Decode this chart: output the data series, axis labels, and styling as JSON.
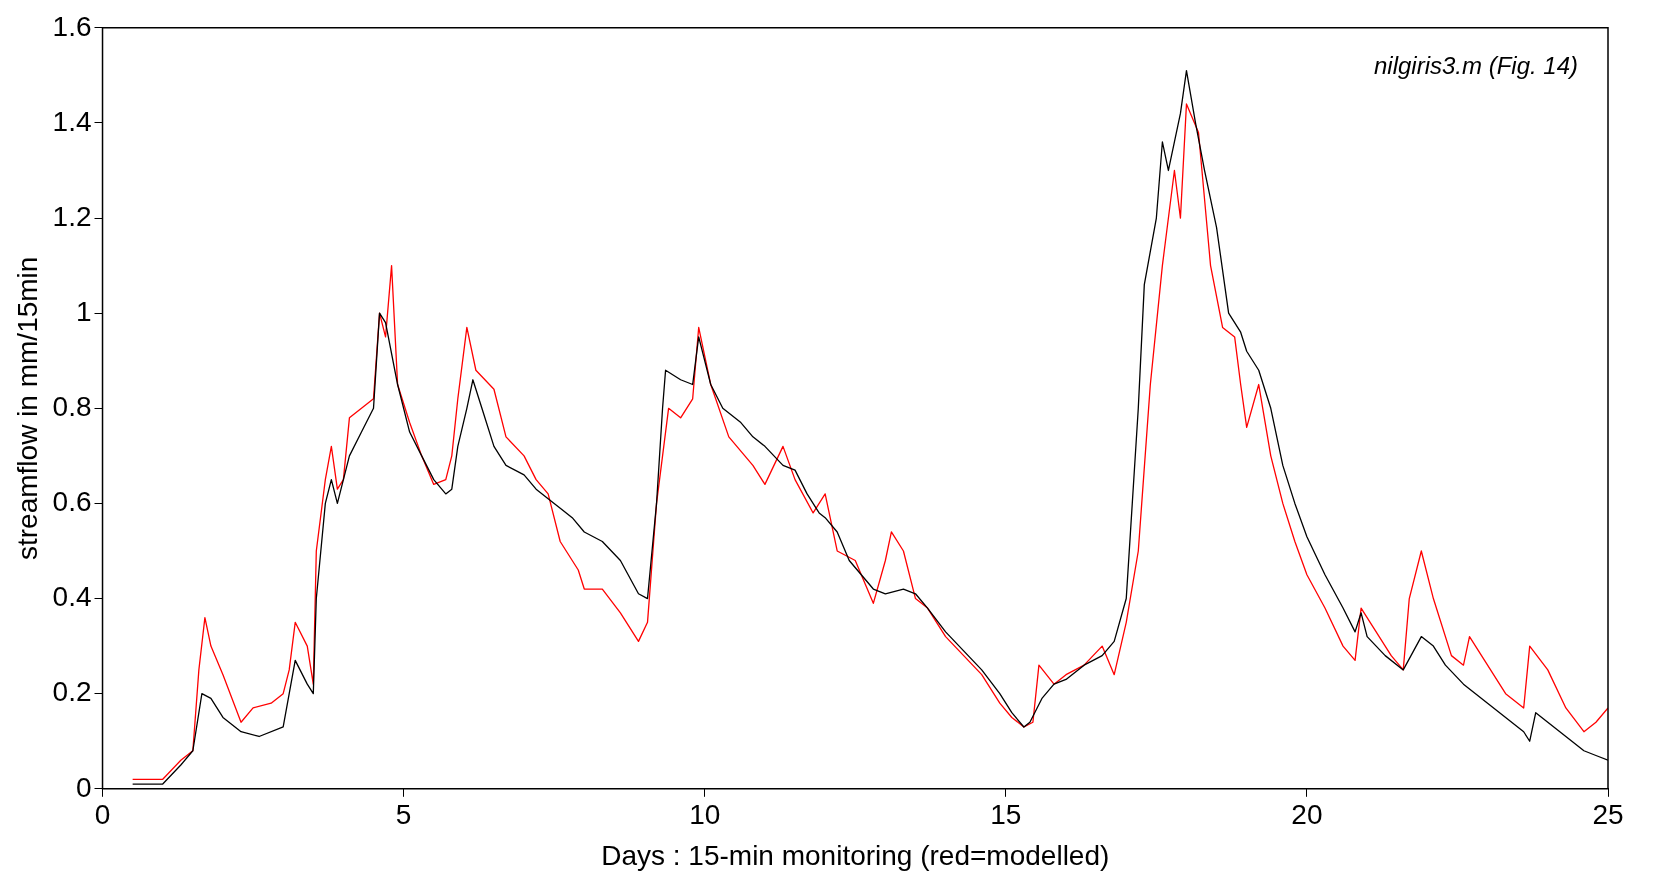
{
  "chart_data": {
    "type": "line",
    "xlabel": "Days : 15-min monitoring (red=modelled)",
    "ylabel": "streamflow in mm/15min",
    "annotations": [
      "nilgiris3.m (Fig. 14)"
    ],
    "xlim": [
      0,
      25
    ],
    "xticks": [
      0,
      5,
      10,
      15,
      20,
      25
    ],
    "ylim": [
      0,
      1.6
    ],
    "yticks": [
      0,
      0.2,
      0.4,
      0.6,
      0.8,
      1,
      1.2,
      1.4,
      1.6
    ],
    "grid": false,
    "legend": false,
    "marker": "none",
    "line_style": "solid",
    "series": [
      {
        "color": "#000000",
        "x": [
          0.5,
          1.0,
          1.3,
          1.5,
          1.65,
          1.8,
          2.0,
          2.3,
          2.6,
          3.0,
          3.1,
          3.2,
          3.4,
          3.5,
          3.55,
          3.7,
          3.8,
          3.9,
          4.1,
          4.3,
          4.5,
          4.6,
          4.7,
          4.9,
          5.1,
          5.3,
          5.5,
          5.7,
          5.8,
          5.9,
          6.05,
          6.15,
          6.3,
          6.5,
          6.7,
          7.0,
          7.2,
          7.5,
          7.8,
          8.0,
          8.3,
          8.6,
          8.9,
          9.05,
          9.2,
          9.3,
          9.35,
          9.6,
          9.8,
          9.9,
          10.1,
          10.3,
          10.6,
          10.8,
          11.0,
          11.3,
          11.5,
          11.7,
          11.9,
          12.0,
          12.2,
          12.4,
          12.6,
          12.8,
          13.0,
          13.3,
          13.5,
          13.7,
          14.0,
          14.3,
          14.6,
          14.9,
          15.1,
          15.3,
          15.4,
          15.6,
          15.8,
          16.0,
          16.3,
          16.6,
          16.8,
          17.0,
          17.1,
          17.2,
          17.3,
          17.5,
          17.6,
          17.7,
          17.8,
          17.9,
          18.0,
          18.15,
          18.3,
          18.5,
          18.7,
          18.9,
          19.0,
          19.2,
          19.4,
          19.6,
          19.8,
          20.0,
          20.3,
          20.6,
          20.8,
          20.9,
          21.0,
          21.3,
          21.6,
          21.9,
          22.1,
          22.3,
          22.6,
          22.8,
          23.0,
          23.3,
          23.6,
          23.7,
          23.8,
          24.0,
          24.3,
          24.6,
          24.8,
          25.0
        ],
        "values": [
          0.01,
          0.01,
          0.05,
          0.08,
          0.2,
          0.19,
          0.15,
          0.12,
          0.11,
          0.13,
          0.2,
          0.27,
          0.22,
          0.2,
          0.4,
          0.6,
          0.65,
          0.6,
          0.7,
          0.75,
          0.8,
          1.0,
          0.98,
          0.85,
          0.75,
          0.7,
          0.65,
          0.62,
          0.63,
          0.72,
          0.8,
          0.86,
          0.8,
          0.72,
          0.68,
          0.66,
          0.63,
          0.6,
          0.57,
          0.54,
          0.52,
          0.48,
          0.41,
          0.4,
          0.6,
          0.8,
          0.88,
          0.86,
          0.85,
          0.95,
          0.85,
          0.8,
          0.77,
          0.74,
          0.72,
          0.68,
          0.67,
          0.62,
          0.58,
          0.57,
          0.54,
          0.48,
          0.45,
          0.42,
          0.41,
          0.42,
          0.41,
          0.38,
          0.33,
          0.29,
          0.25,
          0.2,
          0.16,
          0.13,
          0.14,
          0.19,
          0.22,
          0.23,
          0.26,
          0.28,
          0.31,
          0.4,
          0.6,
          0.8,
          1.06,
          1.2,
          1.36,
          1.3,
          1.36,
          1.42,
          1.51,
          1.4,
          1.3,
          1.18,
          1.0,
          0.96,
          0.92,
          0.88,
          0.8,
          0.68,
          0.6,
          0.53,
          0.45,
          0.38,
          0.33,
          0.37,
          0.32,
          0.28,
          0.25,
          0.32,
          0.3,
          0.26,
          0.22,
          0.2,
          0.18,
          0.15,
          0.12,
          0.1,
          0.16,
          0.14,
          0.11,
          0.08,
          0.07,
          0.06
        ]
      },
      {
        "color": "#ff0000",
        "x": [
          0.5,
          1.0,
          1.3,
          1.5,
          1.6,
          1.7,
          1.8,
          2.0,
          2.3,
          2.5,
          2.8,
          3.0,
          3.1,
          3.2,
          3.4,
          3.5,
          3.55,
          3.7,
          3.8,
          3.9,
          4.0,
          4.1,
          4.3,
          4.5,
          4.6,
          4.7,
          4.8,
          4.9,
          5.1,
          5.3,
          5.5,
          5.7,
          5.8,
          5.9,
          6.05,
          6.2,
          6.5,
          6.7,
          7.0,
          7.2,
          7.4,
          7.6,
          7.9,
          8.0,
          8.3,
          8.6,
          8.9,
          9.05,
          9.2,
          9.4,
          9.6,
          9.8,
          9.9,
          10.1,
          10.4,
          10.8,
          11.0,
          11.3,
          11.5,
          11.8,
          12.0,
          12.2,
          12.5,
          12.8,
          13.0,
          13.1,
          13.3,
          13.5,
          13.7,
          14.0,
          14.3,
          14.6,
          14.9,
          15.1,
          15.3,
          15.45,
          15.55,
          15.8,
          16.0,
          16.3,
          16.6,
          16.8,
          17.0,
          17.2,
          17.4,
          17.6,
          17.8,
          17.9,
          18.0,
          18.2,
          18.4,
          18.6,
          18.8,
          18.9,
          19.0,
          19.2,
          19.4,
          19.6,
          19.8,
          20.0,
          20.3,
          20.6,
          20.8,
          20.9,
          21.1,
          21.4,
          21.6,
          21.7,
          21.9,
          22.1,
          22.4,
          22.6,
          22.7,
          22.9,
          23.3,
          23.6,
          23.7,
          24.0,
          24.3,
          24.6,
          24.8,
          25.0
        ],
        "values": [
          0.02,
          0.02,
          0.06,
          0.08,
          0.25,
          0.36,
          0.3,
          0.24,
          0.14,
          0.17,
          0.18,
          0.2,
          0.25,
          0.35,
          0.3,
          0.22,
          0.5,
          0.65,
          0.72,
          0.63,
          0.65,
          0.78,
          0.8,
          0.82,
          1.0,
          0.95,
          1.1,
          0.85,
          0.77,
          0.7,
          0.64,
          0.65,
          0.7,
          0.82,
          0.97,
          0.88,
          0.84,
          0.74,
          0.7,
          0.65,
          0.62,
          0.52,
          0.46,
          0.42,
          0.42,
          0.37,
          0.31,
          0.35,
          0.6,
          0.8,
          0.78,
          0.82,
          0.97,
          0.85,
          0.74,
          0.68,
          0.64,
          0.72,
          0.65,
          0.58,
          0.62,
          0.5,
          0.48,
          0.39,
          0.48,
          0.54,
          0.5,
          0.4,
          0.38,
          0.32,
          0.28,
          0.24,
          0.18,
          0.15,
          0.13,
          0.14,
          0.26,
          0.22,
          0.24,
          0.26,
          0.3,
          0.24,
          0.35,
          0.5,
          0.85,
          1.1,
          1.3,
          1.2,
          1.44,
          1.38,
          1.1,
          0.97,
          0.95,
          0.85,
          0.76,
          0.85,
          0.7,
          0.6,
          0.52,
          0.45,
          0.38,
          0.3,
          0.27,
          0.38,
          0.34,
          0.28,
          0.25,
          0.4,
          0.5,
          0.4,
          0.28,
          0.26,
          0.32,
          0.28,
          0.2,
          0.17,
          0.3,
          0.25,
          0.17,
          0.12,
          0.14,
          0.17
        ]
      }
    ]
  }
}
